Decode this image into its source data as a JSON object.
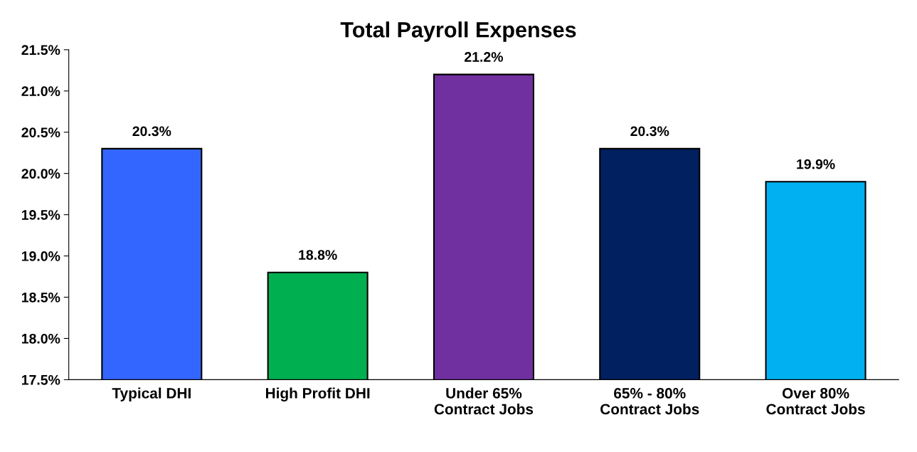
{
  "chart_data": {
    "type": "bar",
    "title": "Total Payroll Expenses",
    "categories": [
      "Typical DHI",
      "High Profit DHI",
      "Under 65%\nContract Jobs",
      "65% - 80%\nContract Jobs",
      "Over 80%\nContract Jobs"
    ],
    "values": [
      20.3,
      18.8,
      21.2,
      20.3,
      19.9
    ],
    "colors": [
      "#3366ff",
      "#00b050",
      "#7030a0",
      "#002060",
      "#00b0f0"
    ],
    "value_labels": [
      "20.3%",
      "18.8%",
      "21.2%",
      "20.3%",
      "19.9%"
    ],
    "ylim": [
      17.5,
      21.5
    ],
    "yticks": [
      {
        "value": 17.5,
        "label": "17.5%"
      },
      {
        "value": 18.0,
        "label": "18.0%"
      },
      {
        "value": 18.5,
        "label": "18.5%"
      },
      {
        "value": 19.0,
        "label": "19.0%"
      },
      {
        "value": 19.5,
        "label": "19.5%"
      },
      {
        "value": 20.0,
        "label": "20.0%"
      },
      {
        "value": 20.5,
        "label": "20.5%"
      },
      {
        "value": 21.0,
        "label": "21.0%"
      },
      {
        "value": 21.5,
        "label": "21.5%"
      }
    ],
    "grid": false
  }
}
